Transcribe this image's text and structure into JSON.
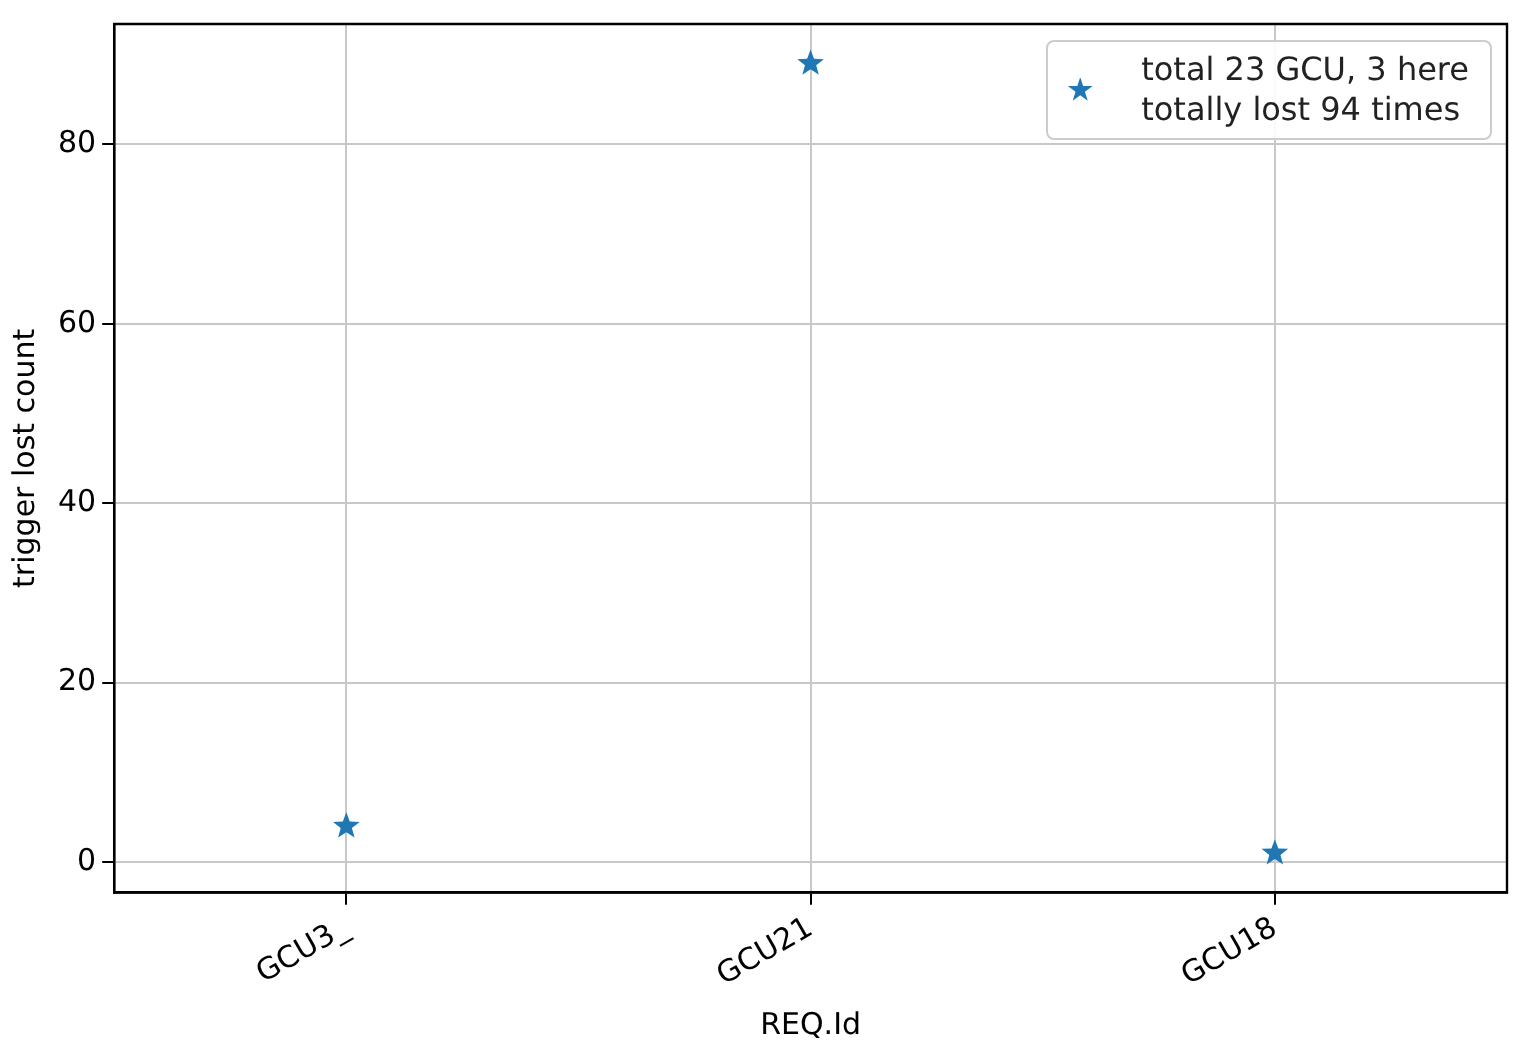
{
  "chart_data": {
    "type": "scatter",
    "xlabel": "REQ.Id",
    "ylabel": "trigger lost count",
    "categories": [
      "GCU3_",
      "GCU21",
      "GCU18"
    ],
    "series": [
      {
        "name": "total 23 GCU, 3 here\ntotally lost 94 times",
        "color": "#1f77b4",
        "values": [
          4,
          89,
          1
        ]
      }
    ],
    "ylim": [
      -3.4,
      93.4
    ],
    "yticks": [
      0,
      20,
      40,
      60,
      80
    ],
    "grid": true,
    "legend": "top right",
    "marker": "star"
  }
}
